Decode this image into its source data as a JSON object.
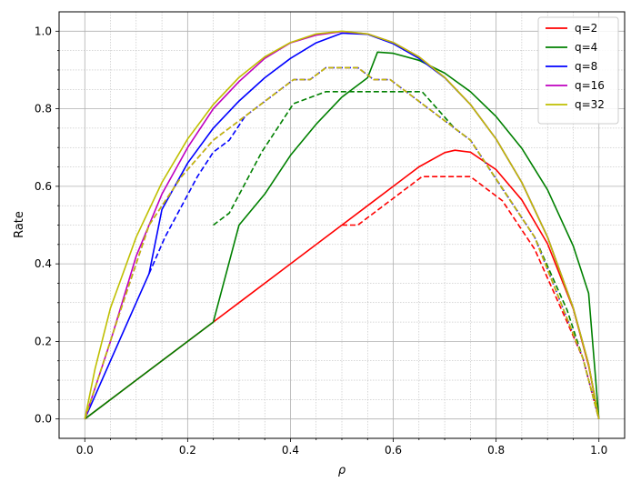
{
  "chart_data": {
    "type": "line",
    "title": "",
    "xlabel": "ρ",
    "ylabel": "Rate",
    "xlim": [
      -0.05,
      1.05
    ],
    "ylim": [
      -0.05,
      1.05
    ],
    "grid": true,
    "minor_grid": true,
    "legend_placement": "top-right",
    "x_ticks": [
      "0.0",
      "0.2",
      "0.4",
      "0.6",
      "0.8",
      "1.0"
    ],
    "y_ticks": [
      "0.0",
      "0.2",
      "0.4",
      "0.6",
      "0.8",
      "1.0"
    ],
    "series": [
      {
        "name": "q=2",
        "color": "#ff0000",
        "style": "solid",
        "x": [
          0,
          0.1,
          0.2,
          0.3,
          0.4,
          0.5,
          0.55,
          0.6,
          0.65,
          0.7,
          0.72,
          0.75,
          0.8,
          0.85,
          0.9,
          0.95,
          0.98,
          1.0
        ],
        "y": [
          0,
          0.1,
          0.2,
          0.3,
          0.4,
          0.5,
          0.55,
          0.6,
          0.65,
          0.687,
          0.693,
          0.688,
          0.643,
          0.565,
          0.452,
          0.284,
          0.137,
          0
        ]
      },
      {
        "name": "",
        "color": "#ff0000",
        "style": "dashed",
        "x": [
          0.5,
          0.531,
          0.656,
          0.75,
          0.812,
          0.875,
          0.938,
          0.969,
          1.0
        ],
        "y": [
          0.5,
          0.5,
          0.625,
          0.625,
          0.563,
          0.438,
          0.25,
          0.156,
          0
        ]
      },
      {
        "name": "q=4",
        "color": "#008000",
        "style": "solid",
        "x": [
          0,
          0.1,
          0.2,
          0.25,
          0.3,
          0.35,
          0.4,
          0.45,
          0.5,
          0.55,
          0.5693,
          0.6,
          0.65,
          0.7,
          0.75,
          0.8,
          0.85,
          0.9,
          0.95,
          0.98,
          1.0
        ],
        "y": [
          0,
          0.1,
          0.2,
          0.25,
          0.5,
          0.58,
          0.68,
          0.76,
          0.83,
          0.88,
          0.946,
          0.943,
          0.925,
          0.892,
          0.844,
          0.78,
          0.698,
          0.591,
          0.446,
          0.324,
          0
        ]
      },
      {
        "name": "",
        "color": "#008000",
        "style": "dashed",
        "x": [
          0.25,
          0.281,
          0.344,
          0.406,
          0.469,
          0.531,
          0.594,
          0.656,
          0.719,
          0.75,
          0.812,
          0.875,
          0.938,
          0.969,
          1.0
        ],
        "y": [
          0.5,
          0.531,
          0.688,
          0.813,
          0.844,
          0.844,
          0.844,
          0.844,
          0.75,
          0.719,
          0.594,
          0.469,
          0.281,
          0.156,
          0
        ]
      },
      {
        "name": "q=8",
        "color": "#0000ff",
        "style": "solid",
        "x": [
          0,
          0.05,
          0.1,
          0.125,
          0.15,
          0.2,
          0.25,
          0.3,
          0.35,
          0.4,
          0.45,
          0.5,
          0.55,
          0.6,
          0.65,
          0.7,
          0.75,
          0.8,
          0.85,
          0.9,
          0.95,
          0.98,
          1.0
        ],
        "y": [
          0,
          0.15,
          0.3,
          0.375,
          0.54,
          0.66,
          0.75,
          0.82,
          0.88,
          0.93,
          0.97,
          0.995,
          0.992,
          0.968,
          0.93,
          0.88,
          0.811,
          0.722,
          0.61,
          0.469,
          0.286,
          0.141,
          0
        ]
      },
      {
        "name": "",
        "color": "#0000ff",
        "style": "dashed",
        "x": [
          0.125,
          0.156,
          0.219,
          0.25,
          0.281,
          0.312,
          0.406,
          0.438,
          0.469,
          0.531,
          0.562,
          0.594,
          0.75,
          0.875,
          0.969,
          1.0
        ],
        "y": [
          0.375,
          0.469,
          0.625,
          0.688,
          0.719,
          0.781,
          0.875,
          0.875,
          0.906,
          0.906,
          0.875,
          0.875,
          0.719,
          0.469,
          0.156,
          0
        ]
      },
      {
        "name": "q=16",
        "color": "#bf00bf",
        "style": "solid",
        "x": [
          0,
          0.05,
          0.1,
          0.15,
          0.2,
          0.25,
          0.3,
          0.35,
          0.4,
          0.45,
          0.5,
          0.55,
          0.6,
          0.65,
          0.7,
          0.75,
          0.8,
          0.85,
          0.9,
          0.95,
          0.98,
          1.0
        ],
        "y": [
          0,
          0.2,
          0.42,
          0.58,
          0.7,
          0.8,
          0.87,
          0.93,
          0.97,
          0.99,
          0.999,
          0.993,
          0.971,
          0.934,
          0.881,
          0.811,
          0.722,
          0.61,
          0.469,
          0.286,
          0.141,
          0
        ]
      },
      {
        "name": "",
        "color": "#bf00bf",
        "style": "dashed",
        "x": [
          0,
          0.062,
          0.125,
          0.188,
          0.25,
          0.312,
          0.406,
          0.438,
          0.469,
          0.531,
          0.562,
          0.594,
          0.75,
          0.875,
          0.969,
          1.0
        ],
        "y": [
          0,
          0.25,
          0.5,
          0.625,
          0.719,
          0.781,
          0.875,
          0.875,
          0.906,
          0.906,
          0.875,
          0.875,
          0.719,
          0.469,
          0.156,
          0
        ]
      },
      {
        "name": "q=32",
        "color": "#bfbf00",
        "style": "solid",
        "x": [
          0,
          0.02,
          0.05,
          0.1,
          0.15,
          0.2,
          0.25,
          0.3,
          0.35,
          0.4,
          0.45,
          0.5,
          0.55,
          0.6,
          0.65,
          0.7,
          0.75,
          0.8,
          0.85,
          0.9,
          0.95,
          0.98,
          1.0
        ],
        "y": [
          0,
          0.13,
          0.286,
          0.469,
          0.61,
          0.722,
          0.811,
          0.881,
          0.934,
          0.971,
          0.993,
          1.0,
          0.993,
          0.971,
          0.934,
          0.881,
          0.811,
          0.722,
          0.61,
          0.469,
          0.286,
          0.141,
          0
        ]
      },
      {
        "name": "",
        "color": "#bfbf00",
        "style": "dashed",
        "x": [
          0,
          0.062,
          0.125,
          0.188,
          0.25,
          0.312,
          0.406,
          0.438,
          0.469,
          0.531,
          0.562,
          0.594,
          0.75,
          0.875,
          0.969,
          1.0
        ],
        "y": [
          0,
          0.25,
          0.5,
          0.625,
          0.719,
          0.781,
          0.875,
          0.875,
          0.906,
          0.906,
          0.875,
          0.875,
          0.719,
          0.469,
          0.156,
          0
        ]
      }
    ]
  }
}
